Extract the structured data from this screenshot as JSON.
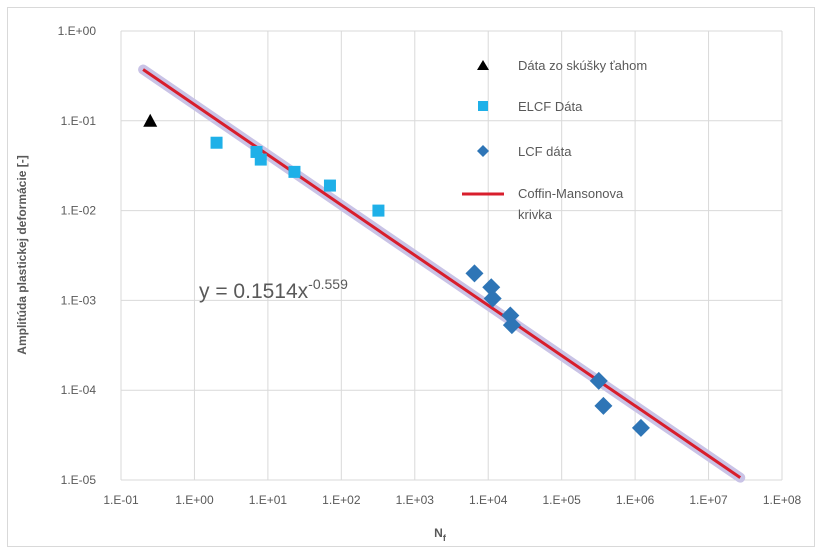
{
  "chart_data": {
    "type": "scatter",
    "xscale": "log",
    "yscale": "log",
    "xlim": [
      0.1,
      100000000
    ],
    "ylim": [
      1e-05,
      1
    ],
    "grid": true,
    "xlabel": "N",
    "xlabel_subscript": "f",
    "ylabel": "Amplitúda plastickej deformácie [-]",
    "x_ticks": [
      "1.E-01",
      "1.E+00",
      "1.E+01",
      "1.E+02",
      "1.E+03",
      "1.E+04",
      "1.E+05",
      "1.E+06",
      "1.E+07",
      "1.E+08"
    ],
    "y_ticks": [
      "1.E+00",
      "1.E-01",
      "1.E-02",
      "1.E-03",
      "1.E-04",
      "1.E-05"
    ],
    "legend_position": "right",
    "series": [
      {
        "name": "Dáta zo skúšky ťahom",
        "marker": "triangle",
        "color": "#000000",
        "points": [
          [
            0.25,
            0.1
          ]
        ]
      },
      {
        "name": "ELCF Dáta",
        "marker": "square",
        "color": "#1fb0e8",
        "points": [
          [
            2,
            0.057
          ],
          [
            7,
            0.045
          ],
          [
            8,
            0.037
          ],
          [
            23,
            0.027
          ],
          [
            70,
            0.019
          ],
          [
            320,
            0.01
          ]
        ]
      },
      {
        "name": "LCF dáta",
        "marker": "diamond",
        "color": "#2e75b6",
        "points": [
          [
            6500,
            0.002
          ],
          [
            11000,
            0.0014
          ],
          [
            11500,
            0.00105
          ],
          [
            20000,
            0.00068
          ],
          [
            21000,
            0.00053
          ],
          [
            320000,
            0.000127
          ],
          [
            370000,
            6.7e-05
          ],
          [
            1200000,
            3.8e-05
          ]
        ]
      },
      {
        "name": "Coffin-Mansonova krivka",
        "type": "line",
        "color": "#d81e2c",
        "fit": {
          "a": 0.1514,
          "b": -0.559
        },
        "x_range": [
          0.2,
          27000000
        ]
      }
    ],
    "equation": {
      "prefix": "y = 0.1514x",
      "exponent": "-0.559"
    }
  }
}
